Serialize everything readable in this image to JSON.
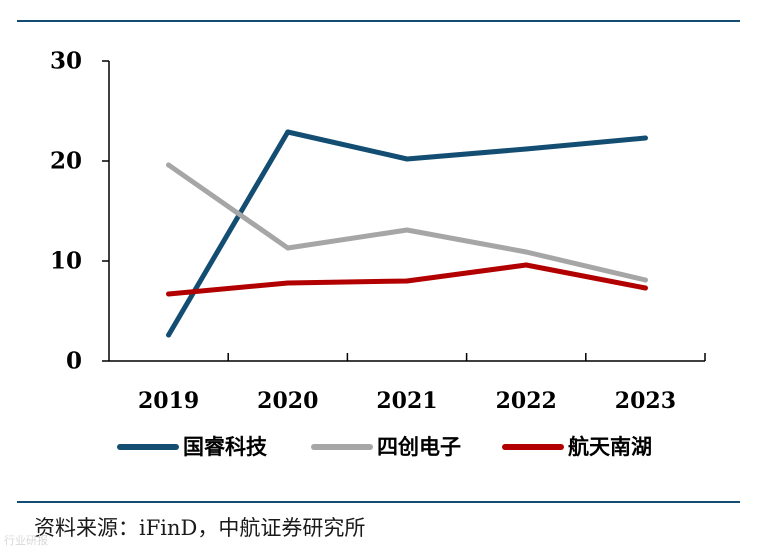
{
  "chart_data": {
    "type": "line",
    "title": "",
    "xlabel": "",
    "ylabel": "",
    "categories": [
      "2019",
      "2020",
      "2021",
      "2022",
      "2023"
    ],
    "ylim": [
      0,
      30
    ],
    "yticks": [
      "0",
      "10",
      "20",
      "30"
    ],
    "grid": false,
    "legend_position": "bottom",
    "series": [
      {
        "name": "国睿科技",
        "color": "#134d72",
        "values": [
          2.6,
          22.9,
          20.2,
          21.2,
          22.3
        ]
      },
      {
        "name": "四创电子",
        "color": "#a6a6a6",
        "values": [
          19.6,
          11.3,
          13.1,
          10.9,
          8.1
        ]
      },
      {
        "name": "航天南湖",
        "color": "#b20000",
        "values": [
          6.7,
          7.8,
          8.0,
          9.6,
          7.3
        ]
      }
    ]
  },
  "footer": {
    "source": "资料来源：iFinD，中航证券研究所",
    "watermark": "行业研报"
  }
}
